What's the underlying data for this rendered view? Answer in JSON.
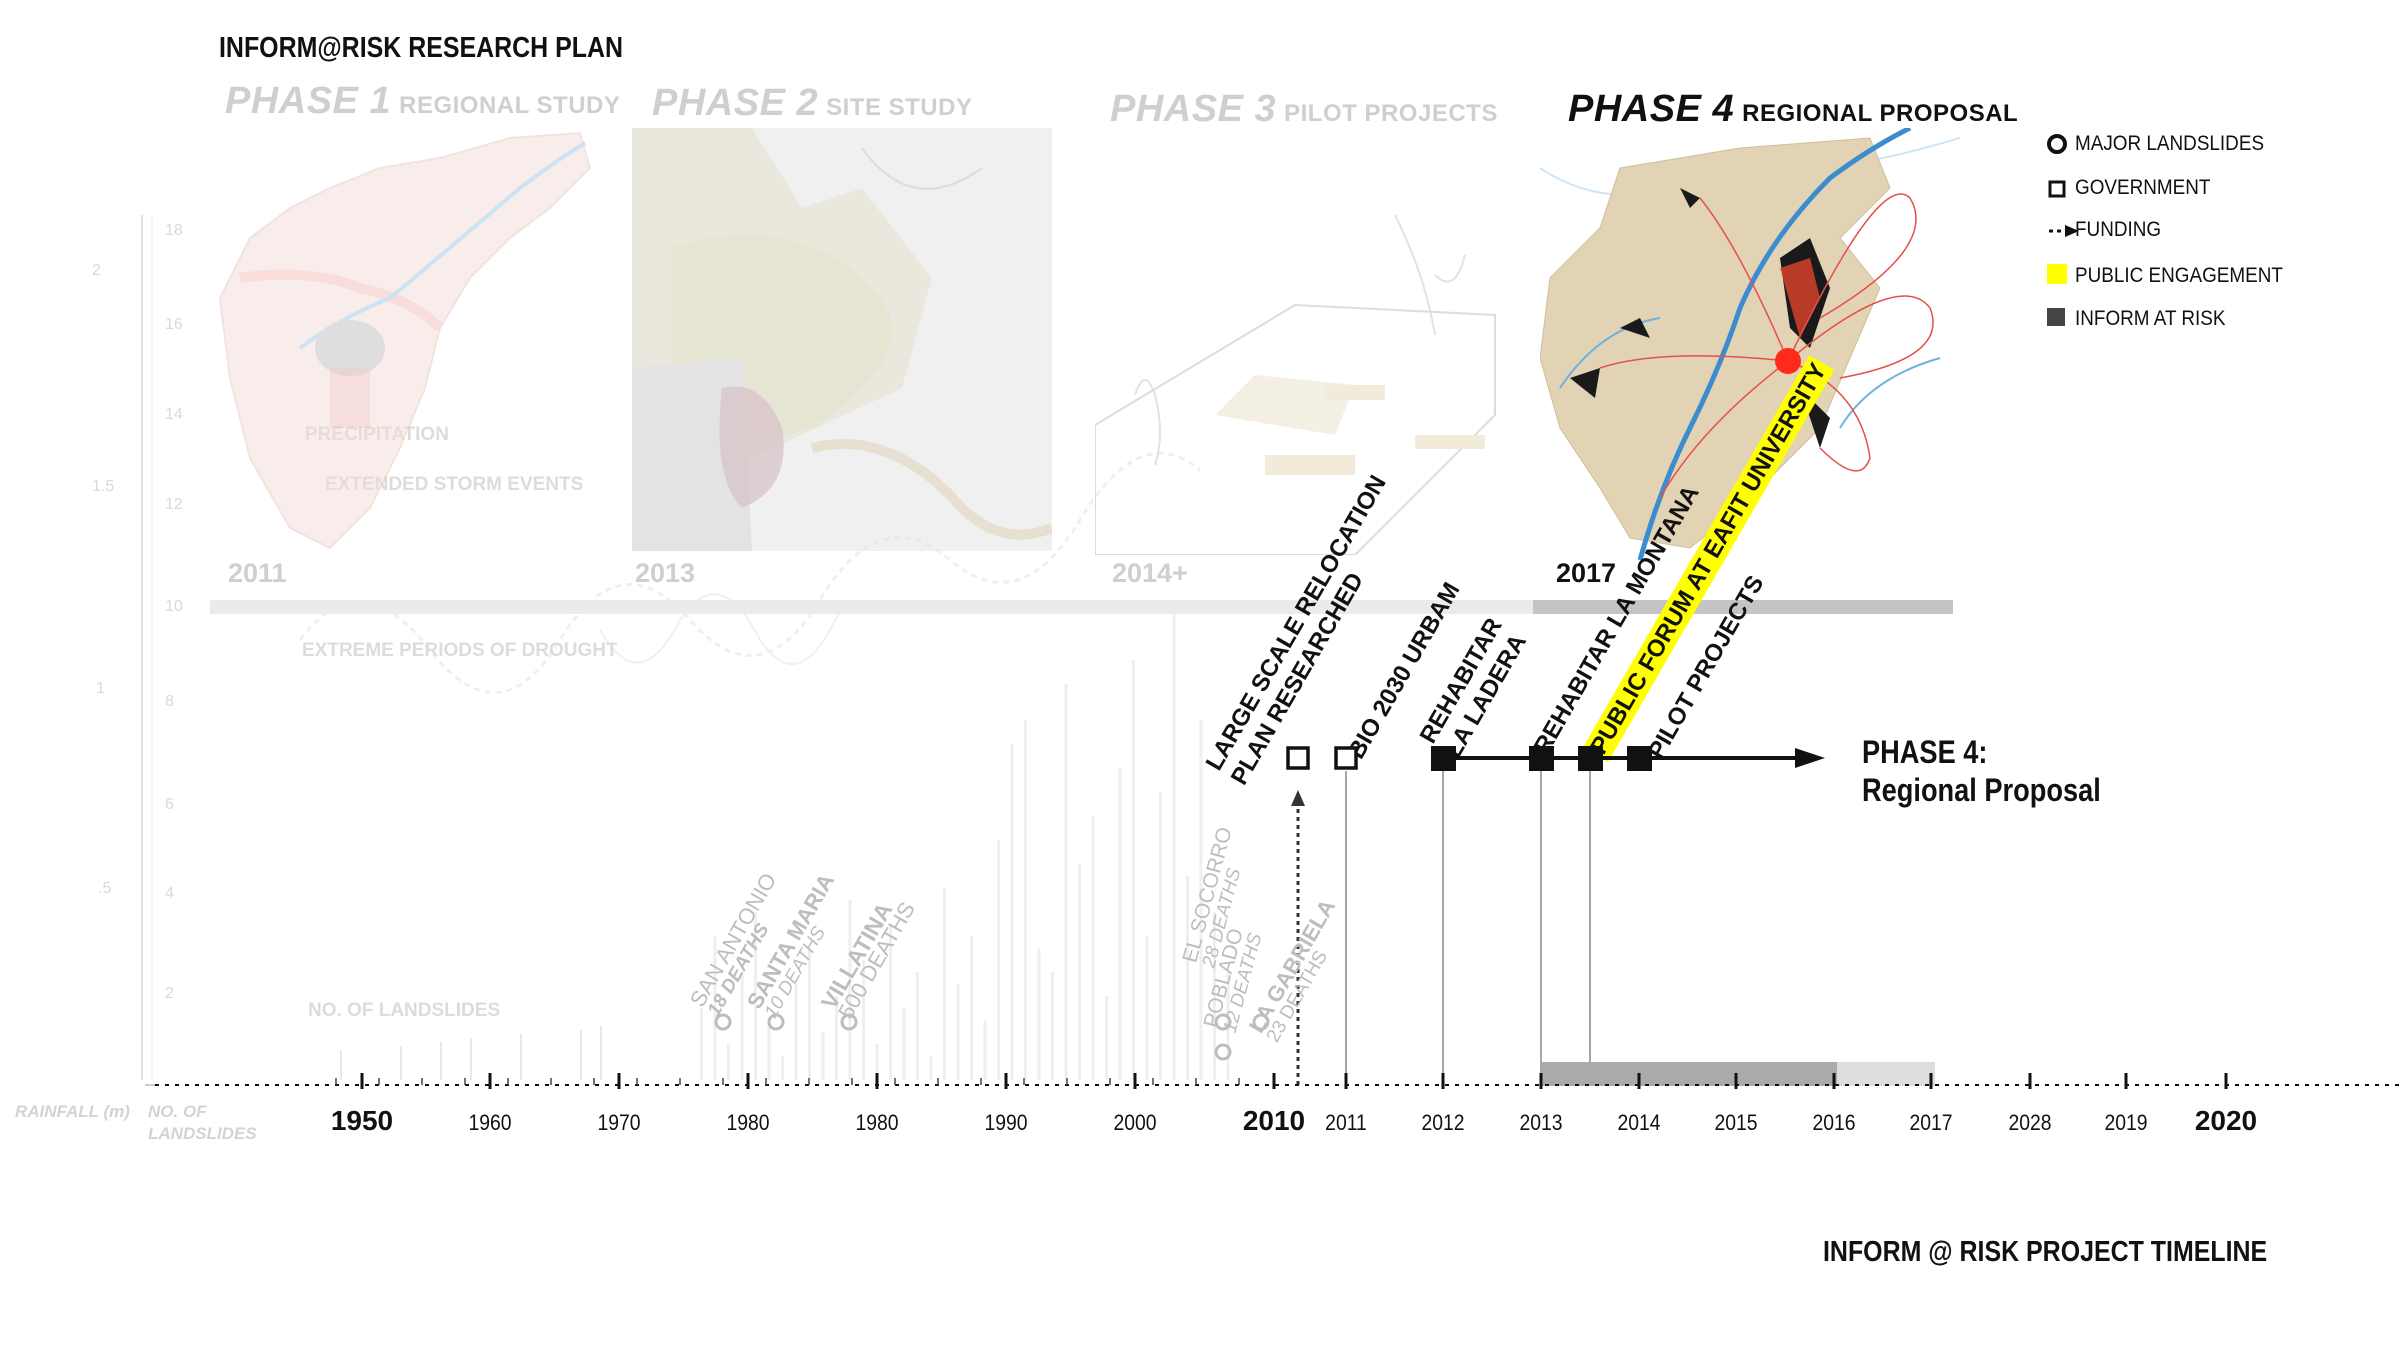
{
  "title": "INFORM@RISK RESEARCH PLAN",
  "footer_title": "INFORM @ RISK PROJECT TIMELINE",
  "phases": [
    {
      "name": "PHASE 1",
      "subtitle": "REGIONAL STUDY",
      "year": "2011"
    },
    {
      "name": "PHASE 2",
      "subtitle": "SITE STUDY",
      "year": "2013"
    },
    {
      "name": "PHASE 3",
      "subtitle": "PILOT PROJECTS",
      "year": "2014+"
    },
    {
      "name": "PHASE 4",
      "subtitle": "REGIONAL PROPOSAL",
      "year": "2017"
    }
  ],
  "legend": [
    {
      "label": "MAJOR LANDSLIDES",
      "icon": "circle-outline-icon"
    },
    {
      "label": "GOVERNMENT",
      "icon": "square-outline-icon"
    },
    {
      "label": "FUNDING",
      "icon": "dotted-arrow-icon"
    },
    {
      "label": "PUBLIC ENGAGEMENT",
      "icon": "yellow-square-icon",
      "color": "#ffff00"
    },
    {
      "label": "INFORM AT RISK",
      "icon": "dark-square-icon",
      "color": "#444444"
    }
  ],
  "events": [
    {
      "label_lines": [
        "LARGE SCALE RELOCATION",
        "PLAN RESEARCHED"
      ],
      "marker": "government"
    },
    {
      "label_lines": [
        "BIO 2030 URBAM"
      ],
      "marker": "government"
    },
    {
      "label_lines": [
        "REHABITAR",
        "LA LADERA"
      ],
      "marker": "inform-at-risk"
    },
    {
      "label_lines": [
        "REHABITAR LA MONTANA"
      ],
      "marker": "inform-at-risk"
    },
    {
      "label_lines": [
        "PUBLIC FORUM AT EAFIT UNIVERSITY"
      ],
      "marker": "inform-at-risk",
      "highlight": "#ffff00"
    },
    {
      "label_lines": [
        "PILOT PROJECTS"
      ],
      "marker": "inform-at-risk"
    }
  ],
  "phase4_callout": {
    "line1": "PHASE 4:",
    "line2": "Regional Proposal"
  },
  "axis": {
    "ticks_past": [
      "1950",
      "1960",
      "1970",
      "1980",
      "1980",
      "1990",
      "2000",
      "2010"
    ],
    "ticks_project": [
      "2011",
      "2012",
      "2013",
      "2014",
      "2015",
      "2016",
      "2017",
      "2028",
      "2019",
      "2020"
    ],
    "bold_ticks": [
      "1950",
      "2010",
      "2020"
    ],
    "left_labels": [
      "RAINFALL (m)",
      "NO. OF",
      "LANDSLIDES"
    ]
  },
  "background_chart": {
    "left_scale": [
      "2",
      "1.5",
      "1",
      ".5"
    ],
    "right_scale": [
      "18",
      "16",
      "14",
      "12",
      "10",
      "8",
      "6",
      "4",
      "2"
    ],
    "labels": [
      "PRECIPITATION",
      "EXTENDED STORM EVENTS",
      "EXTREME PERIODS OF DROUGHT",
      "NO. OF LANDSLIDES"
    ]
  },
  "landslides": [
    {
      "name": "SAN ANTONIO",
      "deaths": "18 DEATHS"
    },
    {
      "name": "SANTA MARIA",
      "deaths": "10 DEATHS"
    },
    {
      "name": "VILLATINA",
      "deaths": "500 DEATHS"
    },
    {
      "name": "EL SOCORRO",
      "deaths": "28 DEATHS"
    },
    {
      "name": "POBLADO",
      "deaths": "12 DEATHS"
    },
    {
      "name": "LA GABRIELA",
      "deaths": "23 DEATHS"
    }
  ]
}
